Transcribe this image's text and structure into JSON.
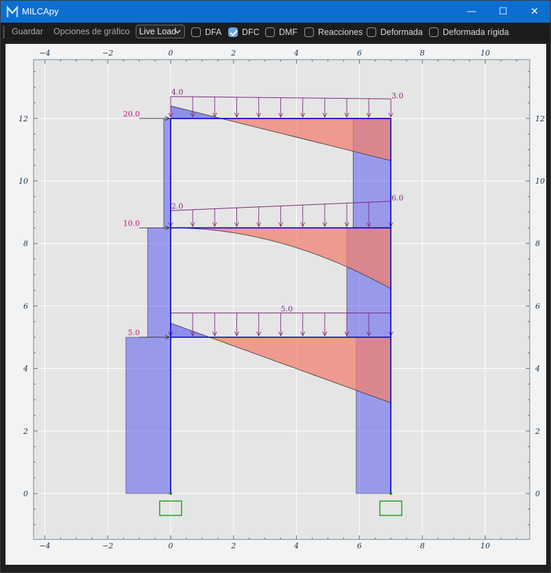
{
  "window": {
    "title": "MILCApy",
    "buttons": {
      "minimize": "—",
      "maximize": "☐",
      "close": "✕"
    }
  },
  "toolbar": {
    "save_label": "Guardar",
    "chart_options_label": "Opciones de gráfico",
    "load_case": {
      "selected": "Live Load"
    },
    "toggles": [
      {
        "label": "DFA",
        "checked": false
      },
      {
        "label": "DFC",
        "checked": true
      },
      {
        "label": "DMF",
        "checked": false
      },
      {
        "label": "Reacciones",
        "checked": false
      },
      {
        "label": "Deformada",
        "checked": false
      },
      {
        "label": "Deformada rígida",
        "checked": false
      }
    ]
  },
  "chart_data": {
    "type": "structural-frame",
    "x_ticks": [
      -4,
      -2,
      0,
      2,
      4,
      6,
      8,
      10
    ],
    "y_ticks": [
      0,
      2,
      4,
      6,
      8,
      10,
      12
    ],
    "xlim": [
      -4.4,
      11.5
    ],
    "ylim": [
      -1.5,
      13.8
    ],
    "grid": true,
    "colors": {
      "frame": "#0000cc",
      "positive": "#f08070",
      "negative": "#7070f0",
      "load": "#7a2a7a",
      "point_load": "#d01080",
      "support": "#009900",
      "grid": "#ffffff",
      "bg": "#e5e5e5"
    },
    "frame": {
      "columns": [
        {
          "x": 0,
          "y0": 0,
          "y1": 12
        },
        {
          "x": 7,
          "y0": 0,
          "y1": 12
        }
      ],
      "beams": [
        {
          "y": 5,
          "x0": 0,
          "x1": 7
        },
        {
          "y": 8.5,
          "x0": 0,
          "x1": 7
        },
        {
          "y": 12,
          "x0": 0,
          "x1": 7
        }
      ],
      "supports": [
        {
          "x": 0,
          "y": 0
        },
        {
          "x": 7,
          "y": 0
        }
      ]
    },
    "column_shear": [
      {
        "x": 0,
        "y0": 0,
        "y1": 5,
        "value": -1.42
      },
      {
        "x": 0,
        "y0": 5,
        "y1": 8.5,
        "value": -0.73
      },
      {
        "x": 0,
        "y0": 8.5,
        "y1": 12,
        "value": -0.22
      },
      {
        "x": 7,
        "y0": 0,
        "y1": 5,
        "value": -1.1
      },
      {
        "x": 7,
        "y0": 5,
        "y1": 8.5,
        "value": -1.4
      },
      {
        "x": 7,
        "y0": 8.5,
        "y1": 12,
        "value": -1.2
      }
    ],
    "beam_shear": [
      {
        "y": 5,
        "x0": 0,
        "x1": 7,
        "v0": 0.45,
        "v1": -2.1,
        "shape": "linear"
      },
      {
        "y": 8.5,
        "x0": 0,
        "x1": 7,
        "v0": 0.0,
        "v1": -1.95,
        "shape": "quadratic"
      },
      {
        "y": 12,
        "x0": 0,
        "x1": 7,
        "v0": 0.4,
        "v1": -1.35,
        "shape": "linear"
      }
    ],
    "distributed_loads": [
      {
        "y": 12,
        "q0": 4.0,
        "q1": 3.0,
        "label0": "4.0",
        "label1": "3.0"
      },
      {
        "y": 8.5,
        "q0": 2.0,
        "q1": 6.0,
        "label0": "2.0",
        "label1": "6.0"
      },
      {
        "y": 5,
        "q0": 5.0,
        "q1": 5.0,
        "label_mid": "5.0"
      }
    ],
    "point_loads": [
      {
        "y": 12,
        "value": 20.0,
        "label": "20.0"
      },
      {
        "y": 8.5,
        "value": 10.0,
        "label": "10.0"
      },
      {
        "y": 5,
        "value": 5.0,
        "label": "5.0"
      }
    ]
  }
}
